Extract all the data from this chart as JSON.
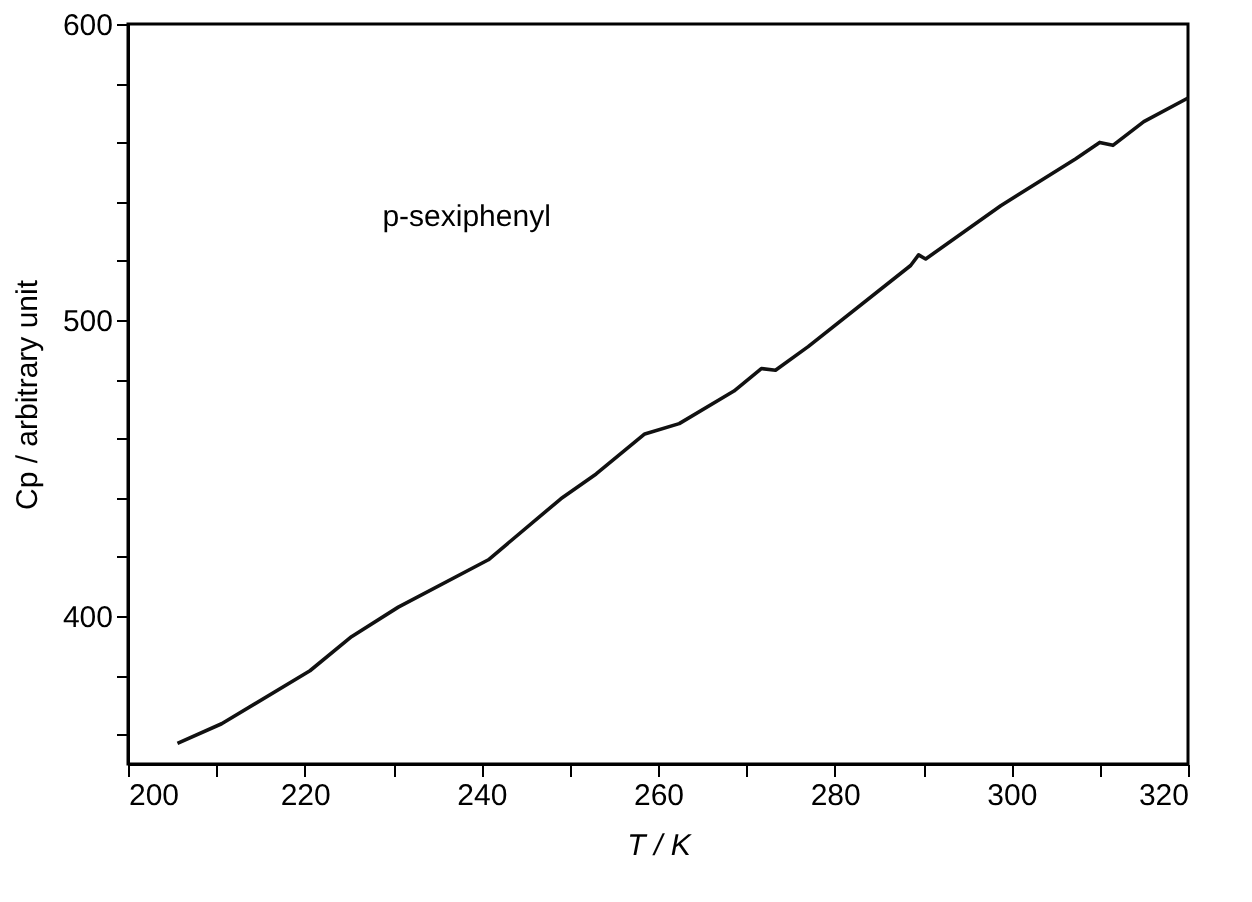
{
  "chart_data": {
    "type": "line",
    "xlabel": "T / K",
    "ylabel": "Cp / arbitrary unit",
    "xlim": [
      200,
      320
    ],
    "ylim": [
      350,
      600
    ],
    "xticks": [
      200,
      {
        "value": 210,
        "label": null
      },
      220,
      {
        "value": 230,
        "label": null
      },
      240,
      {
        "value": 250,
        "label": null
      },
      260,
      {
        "value": 270,
        "label": null
      },
      280,
      {
        "value": 290,
        "label": null
      },
      300,
      {
        "value": 310,
        "label": null
      },
      320
    ],
    "yticks": [
      {
        "value": 360,
        "label": null
      },
      {
        "value": 380,
        "label": null
      },
      400,
      {
        "value": 420,
        "label": null
      },
      {
        "value": 440,
        "label": null
      },
      {
        "value": 460,
        "label": null
      },
      {
        "value": 480,
        "label": null
      },
      500,
      {
        "value": 520,
        "label": null
      },
      {
        "value": 540,
        "label": null
      },
      {
        "value": 560,
        "label": null
      },
      {
        "value": 580,
        "label": null
      },
      600
    ],
    "grid": false,
    "marker": "none",
    "line_style": "solid",
    "series": [
      {
        "name": "p-sexiphenyl",
        "color": "#111111",
        "x": [
          205.6,
          210.6,
          220.6,
          225.3,
          230.6,
          240.8,
          249,
          253,
          258.5,
          262.4,
          268.6,
          271.7,
          273.3,
          277,
          288.6,
          289.5,
          290.3,
          298.8,
          307.3,
          310,
          311.5,
          315,
          320
        ],
        "values": [
          357,
          363.6,
          381.5,
          393,
          403,
          419,
          439.6,
          448,
          461.5,
          465,
          476,
          483.6,
          483,
          491,
          518.4,
          522,
          520.6,
          538.6,
          554.5,
          560,
          559,
          567,
          575
        ]
      }
    ]
  }
}
